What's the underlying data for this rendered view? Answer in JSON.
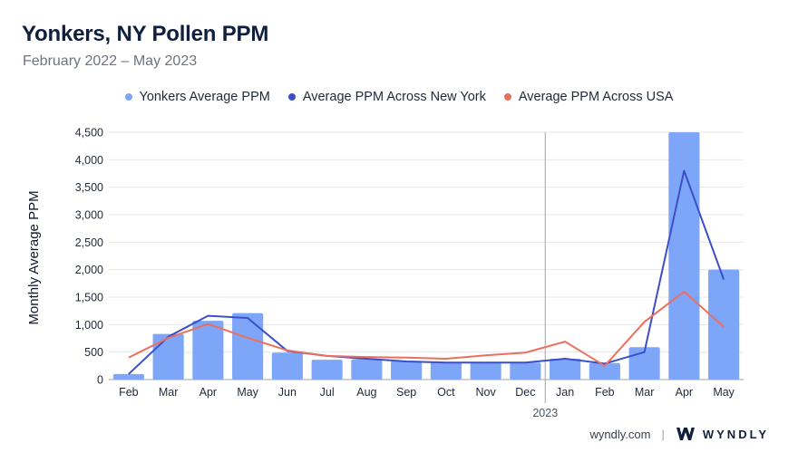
{
  "header": {
    "title": "Yonkers, NY Pollen PPM",
    "subtitle": "February 2022 – May 2023"
  },
  "footer": {
    "site": "wyndly.com",
    "separator": "|",
    "brand": "WYNDLY"
  },
  "colors": {
    "bar": "#7ea6f8",
    "ny_line": "#3a4fc9",
    "usa_line": "#ec6f5d",
    "grid": "#e5e7eb",
    "divider": "#a3a3a3"
  },
  "chart_data": {
    "type": "bar",
    "ylabel": "Monthly Average PPM",
    "xlabel": "",
    "ylim": [
      0,
      4500
    ],
    "yticks": [
      0,
      500,
      1000,
      1500,
      2000,
      2500,
      3000,
      3500,
      4000,
      4500
    ],
    "ytick_labels": [
      "0",
      "500",
      "1,000",
      "1,500",
      "2,000",
      "2,500",
      "3,000",
      "3,500",
      "4,000",
      "4,500"
    ],
    "categories": [
      "Feb",
      "Mar",
      "Apr",
      "May",
      "Jun",
      "Jul",
      "Aug",
      "Sep",
      "Oct",
      "Nov",
      "Dec",
      "Jan",
      "Feb",
      "Mar",
      "Apr",
      "May"
    ],
    "year_marker": {
      "label": "2023",
      "before_index": 11
    },
    "grid": true,
    "legend_position": "top-center",
    "series": [
      {
        "name": "Yonkers Average PPM",
        "kind": "bar",
        "values": [
          100,
          830,
          1070,
          1210,
          490,
          360,
          370,
          340,
          320,
          310,
          310,
          380,
          300,
          590,
          4500,
          2000
        ]
      },
      {
        "name": "Average PPM Across New York",
        "kind": "line",
        "values": [
          100,
          780,
          1160,
          1120,
          520,
          430,
          380,
          330,
          310,
          310,
          310,
          380,
          290,
          500,
          3800,
          1820
        ]
      },
      {
        "name": "Average PPM Across USA",
        "kind": "line",
        "values": [
          400,
          760,
          1010,
          760,
          530,
          430,
          410,
          400,
          380,
          440,
          490,
          690,
          250,
          1050,
          1600,
          960
        ]
      }
    ]
  }
}
